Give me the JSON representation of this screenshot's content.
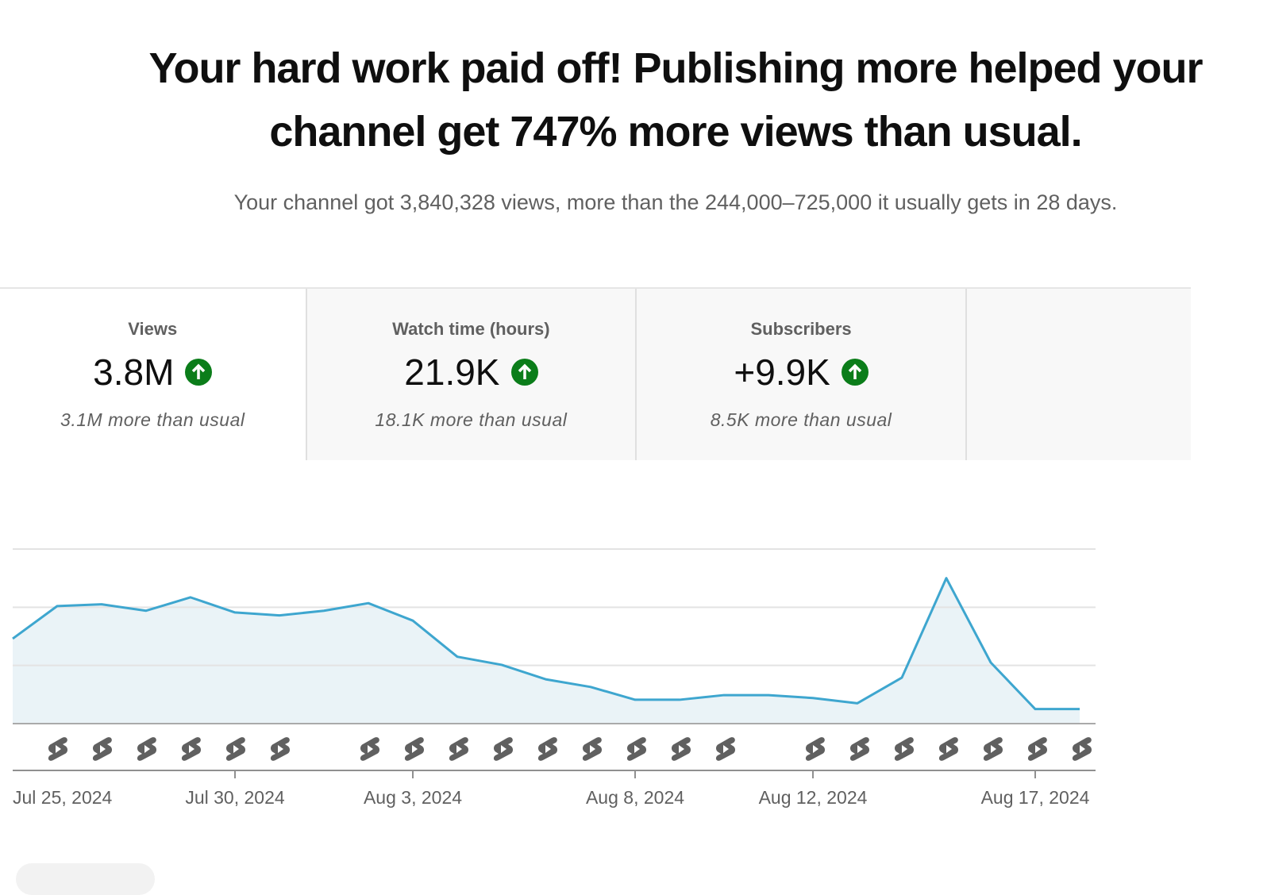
{
  "header": {
    "title": "Your hard work paid off! Publishing more helped your channel get 747% more views than usual.",
    "subtitle": "Your channel got 3,840,328 views, more than the 244,000–725,000 it usually gets in 28 days."
  },
  "metrics": [
    {
      "label": "Views",
      "value": "3.8M",
      "comparison": "3.1M more than usual"
    },
    {
      "label": "Watch time (hours)",
      "value": "21.9K",
      "comparison": "18.1K more than usual"
    },
    {
      "label": "Subscribers",
      "value": "+9.9K",
      "comparison": "8.5K more than usual"
    }
  ],
  "chart_data": {
    "type": "line",
    "categories": [
      "Jul 25, 2024",
      null,
      null,
      null,
      null,
      "Jul 30, 2024",
      null,
      null,
      null,
      "Aug 3, 2024",
      null,
      null,
      null,
      null,
      "Aug 8, 2024",
      null,
      null,
      null,
      "Aug 12, 2024",
      null,
      null,
      null,
      null,
      "Aug 17, 2024",
      null
    ],
    "values": [
      1.46,
      2.02,
      2.05,
      1.94,
      2.17,
      1.91,
      1.86,
      1.94,
      2.07,
      1.77,
      1.15,
      1.01,
      0.76,
      0.63,
      0.41,
      0.41,
      0.49,
      0.49,
      0.44,
      0.35,
      0.79,
      2.5,
      1.05,
      0.25,
      0.25
    ],
    "color": "#3ea6cf",
    "ylim": [
      0,
      3
    ],
    "yticks": [
      0,
      1,
      2,
      3
    ],
    "grid": true
  }
}
